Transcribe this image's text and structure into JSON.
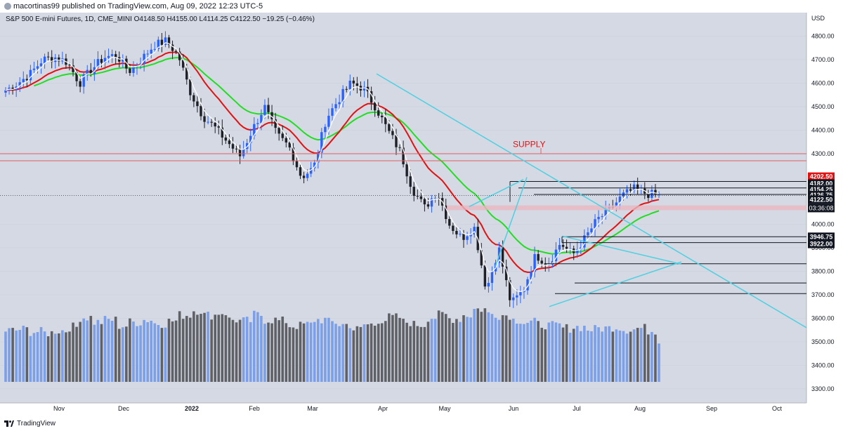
{
  "header": {
    "publisher": "macortinas99 published on TradingView.com, Aug 09, 2022 12:23 UTC-5"
  },
  "legend": {
    "text": "S&P 500 E-mini Futures, 1D, CME_MINI  O4148.50  H4155.00  L4114.25  C4122.50  −19.25 (−0.46%)"
  },
  "footer": {
    "brand": "TradingView"
  },
  "colors": {
    "background": "#d5d9e3",
    "up": "#2962ff",
    "down": "#1e2026",
    "ema_fast": "#ffffff",
    "ema_mid": "#e31212",
    "ema_slow": "#22dd22",
    "trendline": "#4dd0e1",
    "supply_line": "#e06060",
    "volume_up": "#7b9fe8",
    "volume_down": "#5f6166"
  },
  "chart_data": {
    "type": "candlestick",
    "title": "S&P 500 E-mini Futures, 1D, CME_MINI",
    "ylabel": "USD",
    "ylim": [
      3240,
      4900
    ],
    "y_ticks": [
      "4800.00",
      "4700.00",
      "4600.00",
      "4500.00",
      "4400.00",
      "4300.00",
      "4000.00",
      "3900.00",
      "3800.00",
      "3700.00",
      "3600.00",
      "3500.00",
      "3400.00",
      "3300.00"
    ],
    "x_ticks": [
      "Nov",
      "Dec",
      "2022",
      "Feb",
      "Mar",
      "Apr",
      "May",
      "Jun",
      "Jul",
      "Aug",
      "Sep",
      "Oct"
    ],
    "price_labels": [
      {
        "value": 4202.5,
        "text": "4202.50",
        "color": "#e31212"
      },
      {
        "value": 4182.0,
        "text": "4182.00",
        "color": "#131722"
      },
      {
        "value": 4154.25,
        "text": "4154.25",
        "color": "#131722"
      },
      {
        "value": 4126.75,
        "text": "4126.75",
        "color": "#131722"
      },
      {
        "value": 4122.5,
        "text": "4122.50",
        "color": "#131722"
      },
      {
        "value": 3946.75,
        "text": "3946.75",
        "color": "#131722"
      },
      {
        "value": 3922.0,
        "text": "3922.00",
        "color": "#131722"
      }
    ],
    "countdown": "03:36:08",
    "annotation": {
      "text": "SUPPLY",
      "color": "#e31212"
    },
    "supply_levels": [
      4300,
      4270
    ],
    "key_levels": [
      4182.0,
      4154.25,
      4126.75,
      3946.75,
      3922.0,
      3832,
      3750,
      3705
    ],
    "weekly_close": [
      4570,
      4600,
      4640,
      4700,
      4710,
      4690,
      4600,
      4660,
      4710,
      4720,
      4650,
      4700,
      4760,
      4780,
      4720,
      4560,
      4460,
      4410,
      4350,
      4290,
      4400,
      4500,
      4380,
      4330,
      4200,
      4240,
      4450,
      4530,
      4600,
      4580,
      4500,
      4400,
      4310,
      4150,
      4070,
      4140,
      4000,
      3940,
      3990,
      3720,
      3900,
      3660,
      3720,
      3870,
      3830,
      3920,
      3870,
      3940,
      4020,
      4060,
      4120,
      4150,
      4130,
      4123
    ],
    "weekly_volume": [
      430,
      440,
      420,
      410,
      430,
      460,
      540,
      500,
      520,
      470,
      500,
      520,
      490,
      510,
      560,
      600,
      560,
      580,
      520,
      510,
      560,
      520,
      510,
      470,
      480,
      520,
      500,
      480,
      440,
      480,
      520,
      540,
      500,
      480,
      540,
      560,
      530,
      560,
      610,
      570,
      560,
      520,
      500,
      480,
      470,
      450,
      460,
      440,
      450,
      460,
      440,
      450,
      430,
      350
    ]
  }
}
